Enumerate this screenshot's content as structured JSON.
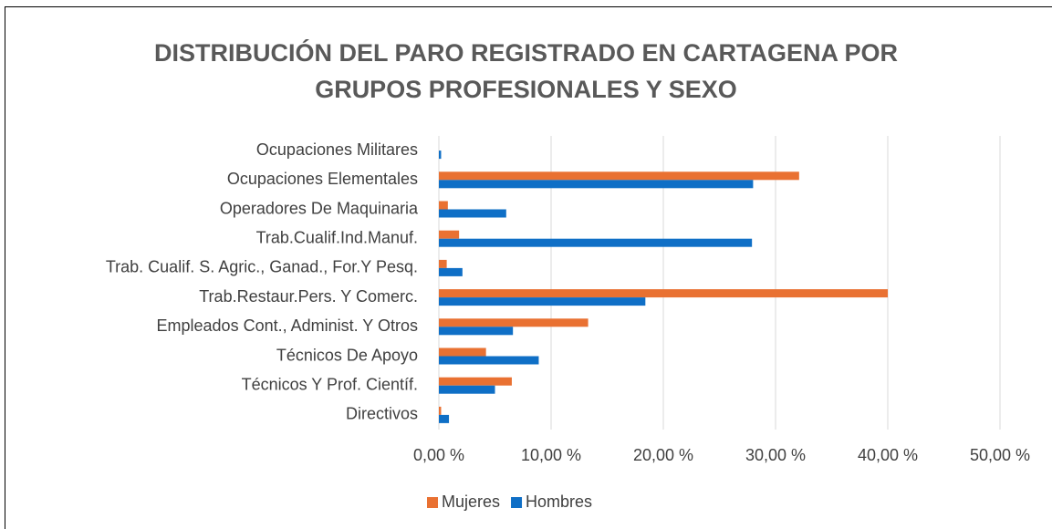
{
  "chart_data": {
    "type": "barh",
    "title": "DISTRIBUCIÓN DEL PARO REGISTRADO EN CARTAGENA POR GRUPOS PROFESIONALES Y SEXO",
    "categories": [
      "Ocupaciones Militares",
      "Ocupaciones Elementales",
      "Operadores De Maquinaria",
      "Trab.Cualif.Ind.Manuf.",
      "Trab. Cualif. S. Agric., Ganad., For.Y Pesq.",
      "Trab.Restaur.Pers. Y Comerc.",
      "Empleados Cont., Administ. Y Otros",
      "Técnicos De Apoyo",
      "Técnicos Y Prof. Científ.",
      "Directivos"
    ],
    "series": [
      {
        "name": "Mujeres",
        "color": "#e97132",
        "values": [
          0,
          32.1,
          0.8,
          1.8,
          0.7,
          40.0,
          13.3,
          4.2,
          6.5,
          0.2
        ]
      },
      {
        "name": "Hombres",
        "color": "#0f6fc6",
        "values": [
          0.2,
          28.0,
          6.0,
          27.9,
          2.1,
          18.4,
          6.6,
          8.9,
          5.0,
          0.9
        ]
      }
    ],
    "xlim": [
      0,
      50
    ],
    "xticks": [
      {
        "value": 0,
        "label": "0,00 %"
      },
      {
        "value": 10,
        "label": "10,00 %"
      },
      {
        "value": 20,
        "label": "20,00 %"
      },
      {
        "value": 30,
        "label": "30,00 %"
      },
      {
        "value": 40,
        "label": "40,00 %"
      },
      {
        "value": 50,
        "label": "50,00 %"
      }
    ],
    "grid": true,
    "legend": "bottom"
  }
}
